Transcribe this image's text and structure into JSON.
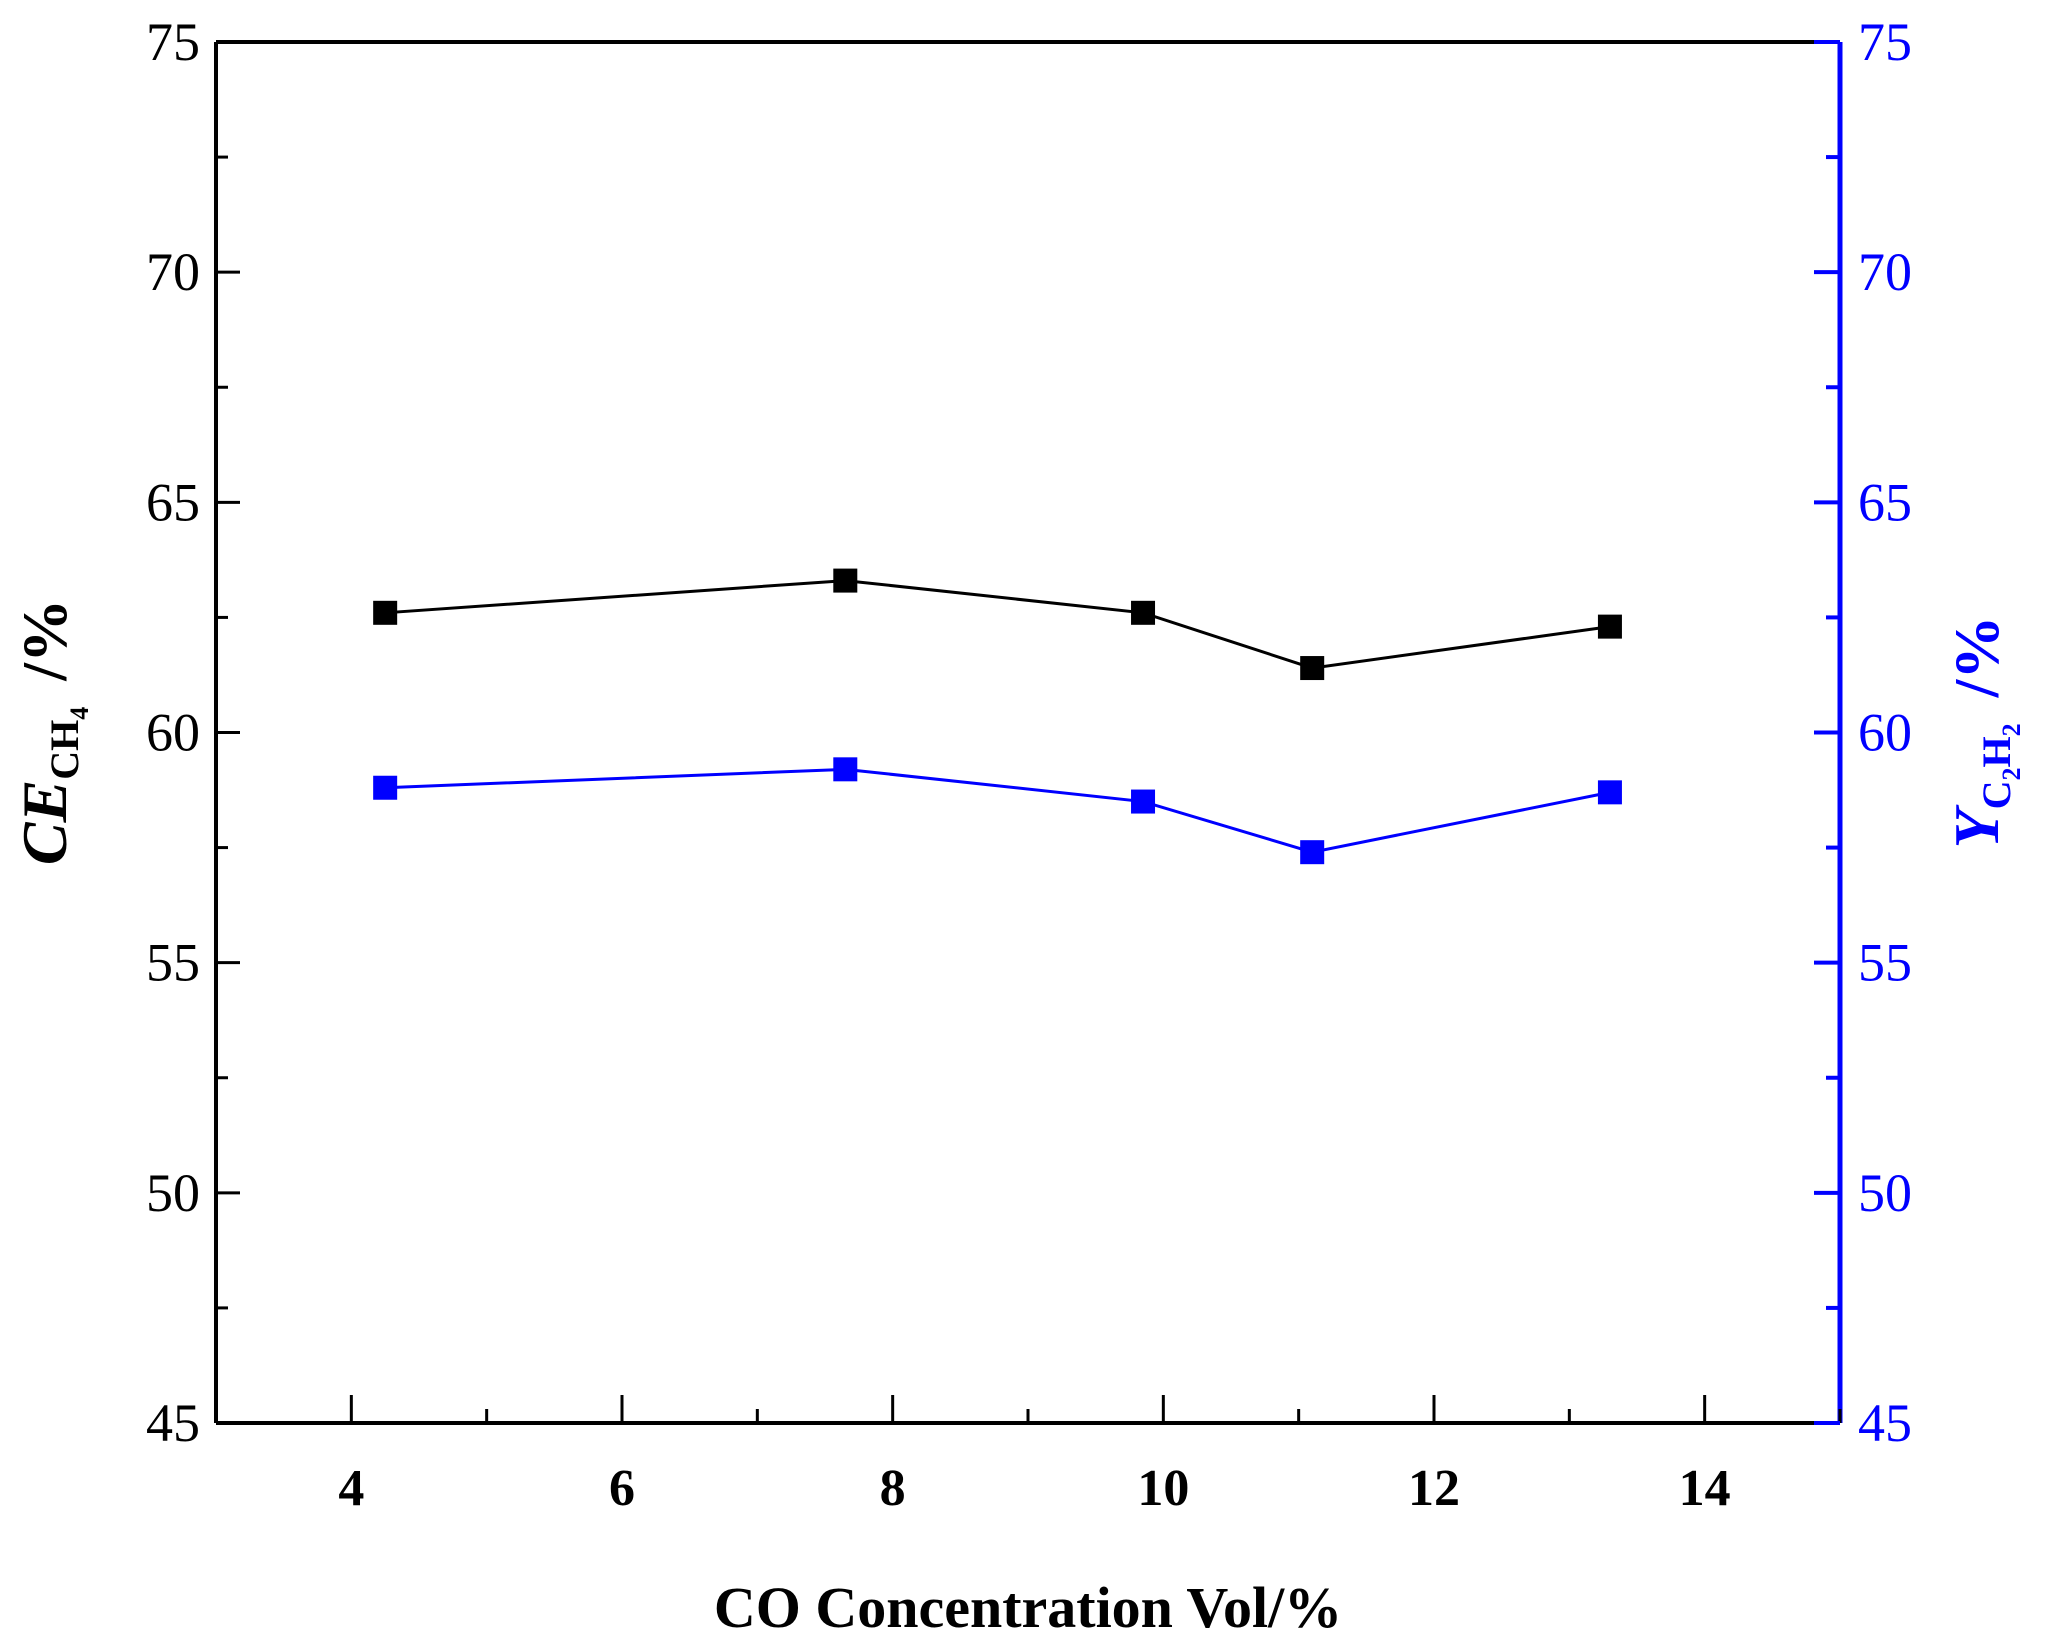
{
  "chart_data": {
    "type": "line",
    "xlabel": "CO Concentration Vol/%",
    "ylabel_left": {
      "main": "CE",
      "sub": "CH",
      "subsub": "4",
      "unit": "/%"
    },
    "ylabel_right": {
      "main": "Y",
      "sub1": "C",
      "sub1_idx": "2",
      "sub2": "H",
      "sub2_idx": "2",
      "unit": "/%"
    },
    "xlim": [
      3,
      15
    ],
    "ylim_left": [
      45,
      75
    ],
    "ylim_right": [
      45,
      75
    ],
    "x_ticks": [
      4,
      6,
      8,
      10,
      12,
      14
    ],
    "x_tick_labels": [
      "4",
      "6",
      "8",
      "10",
      "12",
      "14"
    ],
    "y_ticks": [
      45,
      50,
      55,
      60,
      65,
      70,
      75
    ],
    "y_left_tick_labels": [
      "45",
      "50",
      "55",
      "60",
      "65",
      "70",
      "75"
    ],
    "y_right_tick_labels": [
      "45",
      "50",
      "55",
      "60",
      "65",
      "70",
      "75"
    ],
    "series": [
      {
        "name": "CE CH4",
        "axis": "left",
        "color": "#000000",
        "x": [
          4.25,
          7.65,
          9.85,
          11.1,
          13.3
        ],
        "values": [
          62.6,
          63.3,
          62.6,
          61.4,
          62.3
        ]
      },
      {
        "name": "Y C2H2",
        "axis": "right",
        "color": "#0000ff",
        "x": [
          4.25,
          7.65,
          9.85,
          11.1,
          13.3
        ],
        "values": [
          58.8,
          59.2,
          58.5,
          57.4,
          58.7
        ]
      }
    ],
    "colors": {
      "left_axis": "#000000",
      "right_axis": "#0000ff"
    }
  }
}
